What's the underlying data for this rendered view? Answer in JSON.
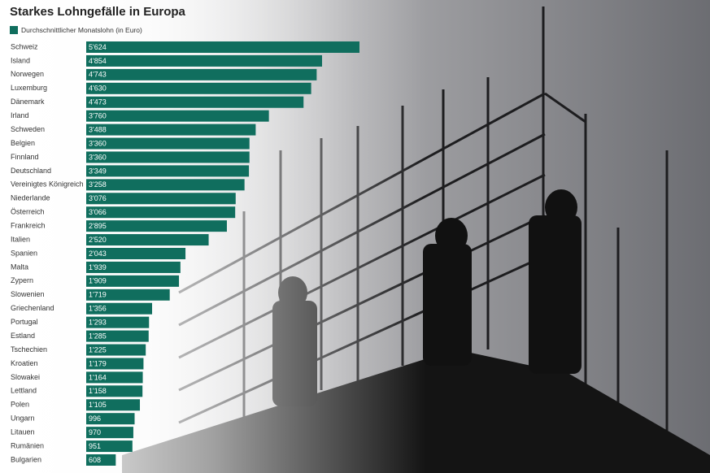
{
  "chart_data": {
    "type": "bar",
    "orientation": "horizontal",
    "title": "Starkes Lohngefälle in Europa",
    "categories": [
      "Schweiz",
      "Island",
      "Norwegen",
      "Luxemburg",
      "Dänemark",
      "Irland",
      "Schweden",
      "Belgien",
      "Finnland",
      "Deutschland",
      "Vereinigtes Königreich",
      "Niederlande",
      "Österreich",
      "Frankreich",
      "Italien",
      "Spanien",
      "Malta",
      "Zypern",
      "Slowenien",
      "Griechenland",
      "Portugal",
      "Estland",
      "Tschechien",
      "Kroatien",
      "Slowakei",
      "Lettland",
      "Polen",
      "Ungarn",
      "Litauen",
      "Rumänien",
      "Bulgarien"
    ],
    "series": [
      {
        "name": "Durchschnittlicher Monatslohn (in Euro)",
        "color": "#106e5e",
        "values": [
          5624,
          4854,
          4743,
          4630,
          4473,
          3760,
          3488,
          3360,
          3360,
          3349,
          3258,
          3076,
          3066,
          2895,
          2520,
          2043,
          1939,
          1909,
          1719,
          1356,
          1293,
          1285,
          1225,
          1179,
          1164,
          1158,
          1105,
          996,
          970,
          951,
          608
        ],
        "value_labels": [
          "5'624",
          "4'854",
          "4'743",
          "4'630",
          "4'473",
          "3'760",
          "3'488",
          "3'360",
          "3'360",
          "3'349",
          "3'258",
          "3'076",
          "3'066",
          "2'895",
          "2'520",
          "2'043",
          "1'939",
          "1'909",
          "1'719",
          "1'356",
          "1'293",
          "1'285",
          "1'225",
          "1'179",
          "1'164",
          "1'158",
          "1'105",
          "996",
          "970",
          "951",
          "608"
        ]
      }
    ]
  }
}
